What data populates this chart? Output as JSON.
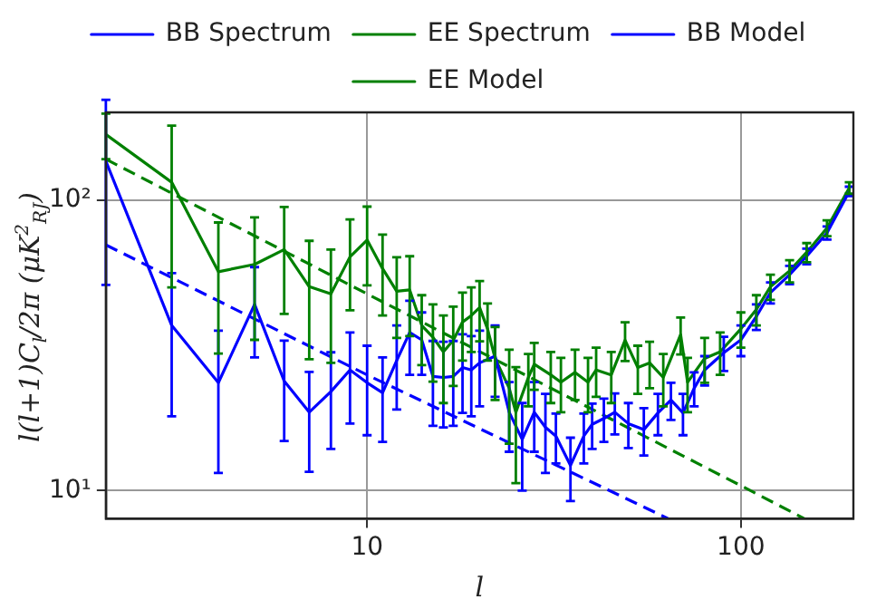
{
  "chart_data": {
    "type": "line",
    "xlabel": "l",
    "ylabel": "l(l+1)C$_{l}$/2π (μK$^{2}$$_{RJ}$)",
    "log": "xy",
    "xlim": [
      2,
      200
    ],
    "ylim": [
      8,
      200
    ],
    "xticks": [
      10,
      100
    ],
    "yticks": [
      {
        "value": 10,
        "label": "10¹"
      },
      {
        "value": 100,
        "label": "10²"
      }
    ],
    "grid": true,
    "legend": "top",
    "marker": "none",
    "series": [
      {
        "name": "BB Spectrum",
        "color": "#0000ff",
        "line_style": "solid",
        "x": [
          2,
          3,
          4,
          5,
          6,
          7,
          8,
          9,
          10,
          11,
          12,
          13,
          14,
          15,
          16,
          17,
          18,
          19,
          20,
          22,
          24,
          26,
          28,
          30,
          32,
          35,
          38,
          40,
          43,
          46,
          50,
          55,
          60,
          65,
          70,
          75,
          80,
          90,
          100,
          110,
          120,
          135,
          150,
          170,
          195
        ],
        "values": [
          136,
          37,
          23.5,
          43.7,
          23.8,
          18.6,
          21.9,
          26,
          23.5,
          21.7,
          28,
          35,
          33,
          24.7,
          24.5,
          24.7,
          26.5,
          26,
          27.5,
          29,
          18.6,
          15,
          18.6,
          16.5,
          15.4,
          12.2,
          15.4,
          16.9,
          17.7,
          18.6,
          17,
          16.2,
          18.5,
          20.5,
          18.5,
          22.5,
          26,
          29.8,
          33,
          39.7,
          48,
          55.3,
          64,
          77,
          107
        ],
        "errors": [
          85,
          19,
          12,
          15,
          9,
          7,
          8,
          9,
          8,
          7,
          9,
          10,
          8,
          8,
          8,
          8,
          8,
          8,
          8,
          8,
          5,
          5,
          5,
          5,
          3,
          3,
          3,
          3,
          3,
          3,
          3,
          3,
          3,
          3,
          3,
          3,
          3,
          4,
          4,
          4,
          4,
          4,
          4,
          4,
          4
        ]
      },
      {
        "name": "EE Spectrum",
        "color": "#008000",
        "line_style": "solid",
        "x": [
          2,
          3,
          4,
          5,
          6,
          7,
          8,
          9,
          10,
          11,
          12,
          13,
          14,
          15,
          16,
          17,
          18,
          19,
          20,
          21,
          22,
          24,
          25,
          27,
          28,
          31,
          33,
          36,
          39,
          41,
          45,
          49,
          53,
          57,
          62,
          69,
          72,
          80,
          88,
          100,
          110,
          120,
          135,
          150,
          170,
          195
        ],
        "values": [
          168,
          115,
          56.6,
          60,
          67.5,
          50.3,
          47.5,
          63.7,
          72.8,
          58,
          48.5,
          49,
          37,
          33.7,
          30,
          32.9,
          38,
          40,
          42.6,
          36,
          28.5,
          22.5,
          18.6,
          24.5,
          27.2,
          25,
          23.6,
          25.5,
          23.6,
          26,
          25,
          32.9,
          26.5,
          27.5,
          24.5,
          34.4,
          23.6,
          28.5,
          30,
          36,
          42,
          50.3,
          57,
          66,
          80,
          110
        ],
        "errors": [
          30,
          65,
          27,
          27,
          27,
          22,
          20,
          22,
          22,
          18,
          15,
          15,
          10,
          10,
          10,
          10,
          10,
          10,
          10,
          8,
          8,
          8,
          8,
          5,
          5,
          5,
          5,
          5,
          5,
          5,
          5,
          5,
          5,
          5,
          5,
          5,
          5,
          5,
          5,
          5,
          5,
          5,
          5,
          5,
          5,
          5
        ]
      },
      {
        "name": "BB Model",
        "color": "#0000ff",
        "line_style": "dashed",
        "x": [
          2,
          10,
          64
        ],
        "values": [
          70,
          25,
          8
        ]
      },
      {
        "name": "EE Model",
        "color": "#008000",
        "line_style": "dashed",
        "x": [
          2,
          10,
          100,
          148
        ],
        "values": [
          138,
          47.5,
          10.4,
          8
        ]
      }
    ]
  }
}
